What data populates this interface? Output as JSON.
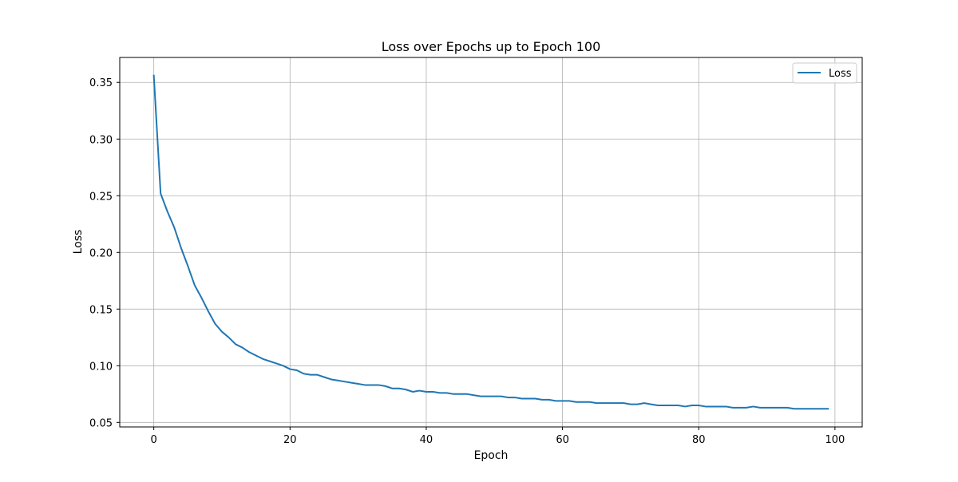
{
  "chart_data": {
    "type": "line",
    "title": "Loss over Epochs up to Epoch 100",
    "xlabel": "Epoch",
    "ylabel": "Loss",
    "xlim": [
      -5,
      104
    ],
    "ylim": [
      0.046,
      0.372
    ],
    "x_ticks": [
      0,
      20,
      40,
      60,
      80,
      100
    ],
    "y_ticks": [
      0.05,
      0.1,
      0.15,
      0.2,
      0.25,
      0.3,
      0.35
    ],
    "x_tick_labels": [
      "0",
      "20",
      "40",
      "60",
      "80",
      "100"
    ],
    "y_tick_labels": [
      "0.05",
      "0.10",
      "0.15",
      "0.20",
      "0.25",
      "0.30",
      "0.35"
    ],
    "grid": true,
    "legend_position": "top-right",
    "series": [
      {
        "name": "Loss",
        "color": "#1f77b4",
        "x": [
          0,
          1,
          2,
          3,
          4,
          5,
          6,
          7,
          8,
          9,
          10,
          11,
          12,
          13,
          14,
          15,
          16,
          17,
          18,
          19,
          20,
          21,
          22,
          23,
          24,
          25,
          26,
          27,
          28,
          29,
          30,
          31,
          32,
          33,
          34,
          35,
          36,
          37,
          38,
          39,
          40,
          41,
          42,
          43,
          44,
          45,
          46,
          47,
          48,
          49,
          50,
          51,
          52,
          53,
          54,
          55,
          56,
          57,
          58,
          59,
          60,
          61,
          62,
          63,
          64,
          65,
          66,
          67,
          68,
          69,
          70,
          71,
          72,
          73,
          74,
          75,
          76,
          77,
          78,
          79,
          80,
          81,
          82,
          83,
          84,
          85,
          86,
          87,
          88,
          89,
          90,
          91,
          92,
          93,
          94,
          95,
          96,
          97,
          98,
          99
        ],
        "y": [
          0.356,
          0.252,
          0.236,
          0.222,
          0.204,
          0.188,
          0.171,
          0.16,
          0.148,
          0.137,
          0.13,
          0.125,
          0.119,
          0.116,
          0.112,
          0.109,
          0.106,
          0.104,
          0.102,
          0.1,
          0.097,
          0.096,
          0.093,
          0.092,
          0.092,
          0.09,
          0.088,
          0.087,
          0.086,
          0.085,
          0.084,
          0.083,
          0.083,
          0.083,
          0.082,
          0.08,
          0.08,
          0.079,
          0.077,
          0.078,
          0.077,
          0.077,
          0.076,
          0.076,
          0.075,
          0.075,
          0.075,
          0.074,
          0.073,
          0.073,
          0.073,
          0.073,
          0.072,
          0.072,
          0.071,
          0.071,
          0.071,
          0.07,
          0.07,
          0.069,
          0.069,
          0.069,
          0.068,
          0.068,
          0.068,
          0.067,
          0.067,
          0.067,
          0.067,
          0.067,
          0.066,
          0.066,
          0.067,
          0.066,
          0.065,
          0.065,
          0.065,
          0.065,
          0.064,
          0.065,
          0.065,
          0.064,
          0.064,
          0.064,
          0.064,
          0.063,
          0.063,
          0.063,
          0.064,
          0.063,
          0.063,
          0.063,
          0.063,
          0.063,
          0.062,
          0.062,
          0.062,
          0.062,
          0.062,
          0.062
        ]
      }
    ]
  }
}
